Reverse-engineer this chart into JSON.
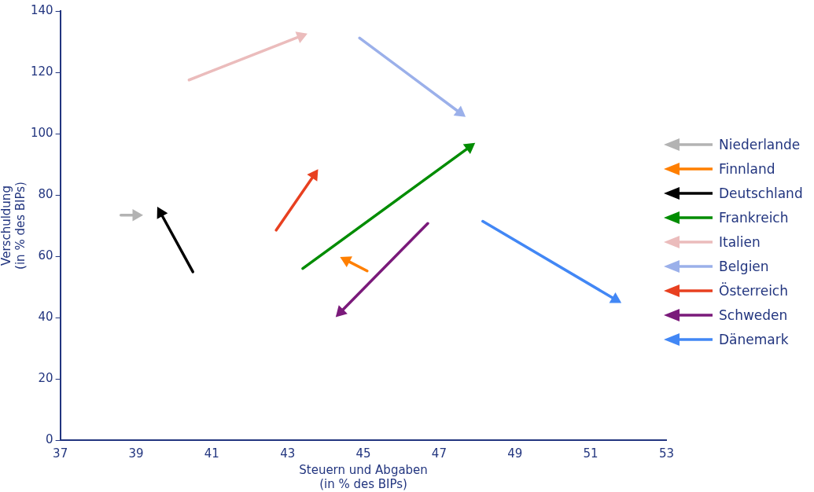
{
  "chart_data": {
    "type": "line",
    "xlabel": "Steuern und Abgaben\n(in % des BIPs)",
    "ylabel": "Verschuldung\n(in % des BIPs)",
    "xlim": [
      37,
      53
    ],
    "xticks": [
      37,
      39,
      41,
      43,
      45,
      47,
      49,
      51,
      53
    ],
    "ylim": [
      0,
      140
    ],
    "yticks": [
      0,
      20,
      40,
      60,
      80,
      100,
      120,
      140
    ],
    "grid": false,
    "legend": "right",
    "marker": "triangle",
    "series": [
      {
        "name": "Niederlande",
        "color": "#b3b3b3",
        "x": [
          38.6,
          39.0
        ],
        "values": [
          73.4,
          73.4
        ]
      },
      {
        "name": "Finnland",
        "color": "#ff7f00",
        "x": [
          45.1,
          44.55
        ],
        "values": [
          55.2,
          58.7
        ]
      },
      {
        "name": "Deutschland",
        "color": "#000000",
        "x": [
          40.5,
          39.65
        ],
        "values": [
          54.9,
          74.1
        ]
      },
      {
        "name": "Frankreich",
        "color": "#008c00",
        "x": [
          43.4,
          47.8
        ],
        "values": [
          56.0,
          95.6
        ]
      },
      {
        "name": "Italien",
        "color": "#ebbcbc",
        "x": [
          40.4,
          43.35
        ],
        "values": [
          117.5,
          131.8
        ]
      },
      {
        "name": "Belgien",
        "color": "#9bb0ea",
        "x": [
          44.9,
          47.55
        ],
        "values": [
          131.2,
          106.8
        ]
      },
      {
        "name": "Österreich",
        "color": "#e84020",
        "x": [
          42.7,
          43.7
        ],
        "values": [
          68.5,
          86.5
        ]
      },
      {
        "name": "Schweden",
        "color": "#7a1a7a",
        "x": [
          46.7,
          44.4
        ],
        "values": [
          70.7,
          41.8
        ]
      },
      {
        "name": "Dänemark",
        "color": "#4287f5",
        "x": [
          48.15,
          51.65
        ],
        "values": [
          71.4,
          45.9
        ]
      }
    ]
  }
}
